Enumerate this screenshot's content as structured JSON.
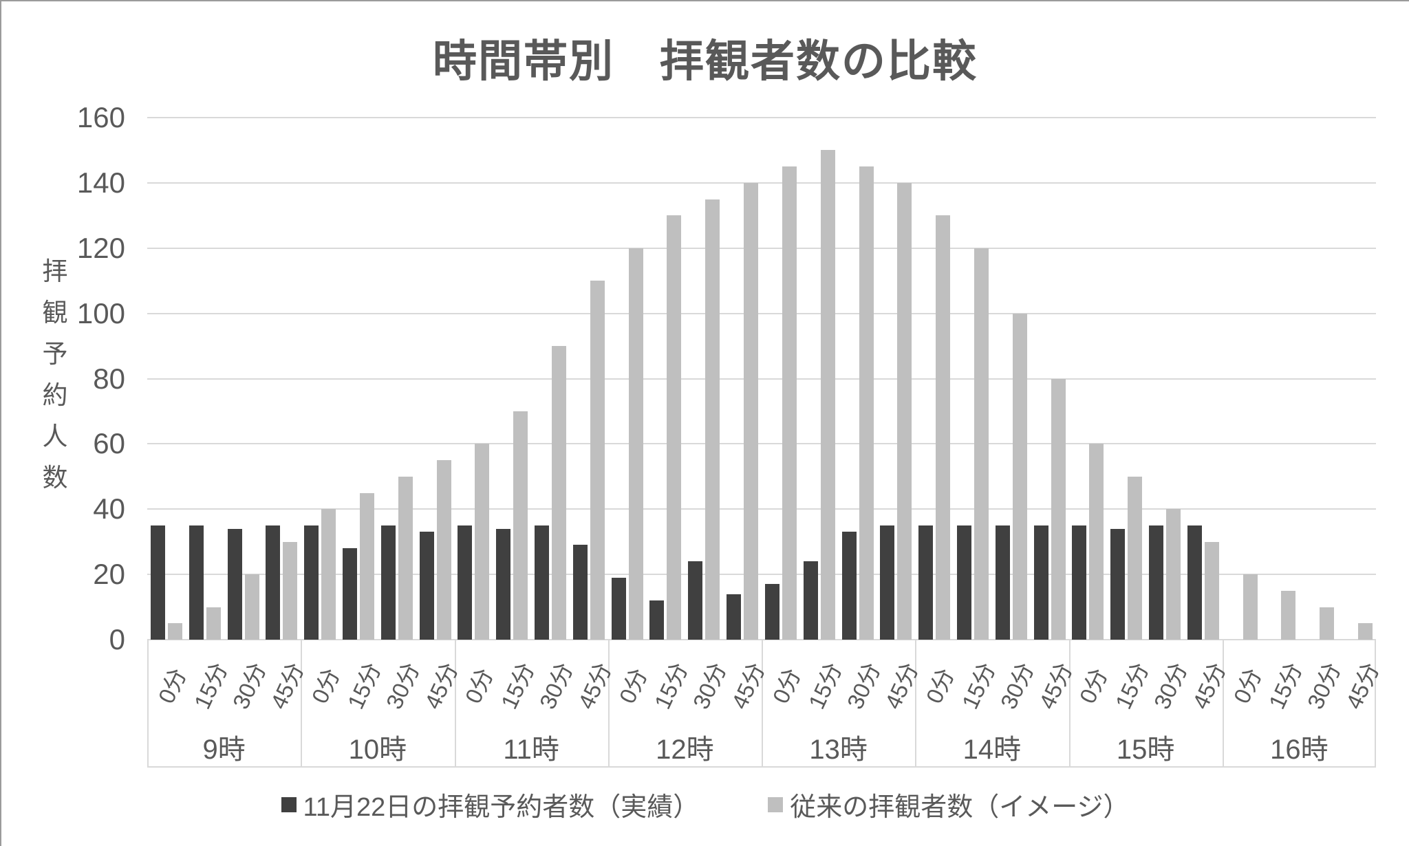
{
  "title": "時間帯別　拝観者数の比較",
  "y_axis": {
    "title": "拝観予約人数",
    "title_chars": [
      "拝",
      "観",
      "予",
      "約",
      "人",
      "数"
    ],
    "ticks": [
      0,
      20,
      40,
      60,
      80,
      100,
      120,
      140,
      160
    ],
    "max": 160
  },
  "x_axis": {
    "hours": [
      "9時",
      "10時",
      "11時",
      "12時",
      "13時",
      "14時",
      "15時",
      "16時"
    ],
    "minutes": [
      "0分",
      "15分",
      "30分",
      "45分"
    ]
  },
  "legend": [
    {
      "label": "11月22日の拝観予約者数（実績）",
      "color": "#404040"
    },
    {
      "label": "従来の拝観者数（イメージ）",
      "color": "#bfbfbf"
    }
  ],
  "colors": {
    "actual_bar": "#404040",
    "typical_bar": "#bfbfbf",
    "gridline": "#d9d9d9",
    "text": "#595959"
  },
  "chart_data": {
    "type": "bar",
    "title": "時間帯別　拝観者数の比較",
    "xlabel": "",
    "ylabel": "拝観予約人数",
    "ylim": [
      0,
      160
    ],
    "grid": true,
    "legend_position": "bottom",
    "group_labels": [
      "9時",
      "10時",
      "11時",
      "12時",
      "13時",
      "14時",
      "15時",
      "16時"
    ],
    "minute_labels": [
      "0分",
      "15分",
      "30分",
      "45分"
    ],
    "series": [
      {
        "name": "11月22日の拝観予約者数（実績）",
        "color": "#404040",
        "values_by_hour": [
          [
            35,
            35,
            34,
            35
          ],
          [
            35,
            28,
            35,
            33
          ],
          [
            35,
            34,
            35,
            29
          ],
          [
            19,
            12,
            24,
            14
          ],
          [
            17,
            24,
            33,
            35
          ],
          [
            35,
            35,
            35,
            35
          ],
          [
            35,
            34,
            35,
            35
          ],
          [
            0,
            0,
            0,
            0
          ]
        ]
      },
      {
        "name": "従来の拝観者数（イメージ）",
        "color": "#bfbfbf",
        "values_by_hour": [
          [
            5,
            10,
            20,
            30
          ],
          [
            40,
            45,
            50,
            55
          ],
          [
            60,
            70,
            90,
            110
          ],
          [
            120,
            130,
            135,
            140
          ],
          [
            145,
            150,
            145,
            140
          ],
          [
            130,
            120,
            100,
            80
          ],
          [
            60,
            50,
            40,
            30
          ],
          [
            20,
            15,
            10,
            5
          ]
        ]
      }
    ]
  }
}
